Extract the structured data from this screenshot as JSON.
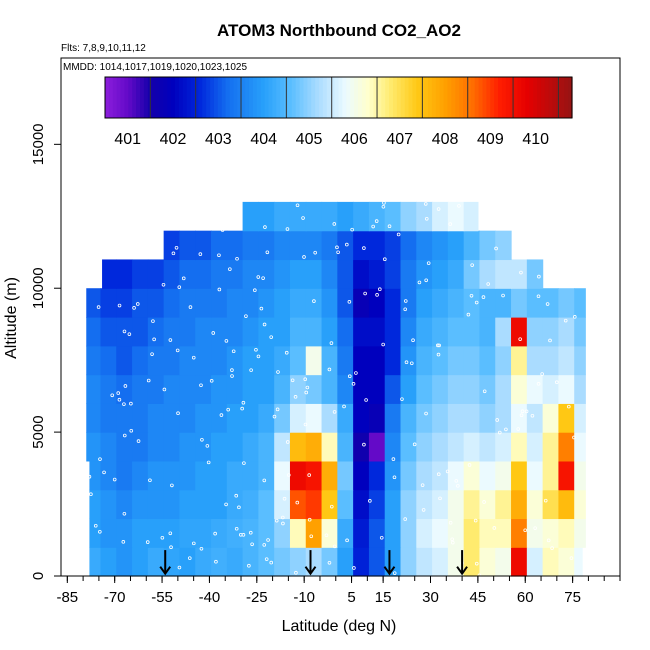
{
  "chart_data": {
    "type": "heatmap",
    "title": "ATOM3 Northbound CO2_AO2",
    "subtitle": "Flts: 7,8,9,10,11,12",
    "annotation": "MMDD: 1014,1017,1019,1020,1023,1025",
    "xlabel": "Latitude (deg N)",
    "ylabel": "Altitude (m)",
    "xlim": [
      -87,
      90
    ],
    "ylim": [
      0,
      18000
    ],
    "x_ticks": [
      -85,
      -70,
      -55,
      -40,
      -25,
      -10,
      5,
      15,
      30,
      45,
      60,
      75
    ],
    "y_ticks": [
      0,
      5000,
      10000,
      15000
    ],
    "colorbar": {
      "placement": "top-inside",
      "labels": [
        "401",
        "402",
        "403",
        "404",
        "405",
        "406",
        "407",
        "408",
        "409",
        "410"
      ],
      "range": [
        400.5,
        410.8
      ]
    },
    "arrow_latitudes": [
      -54,
      -8,
      17,
      40
    ],
    "lat_bins": [
      -77,
      -72,
      -67,
      -62,
      -57,
      -52,
      -47,
      -42,
      -37,
      -32,
      -27,
      -22,
      -17,
      -12,
      -7,
      -2,
      3,
      8,
      13,
      18,
      23,
      28,
      33,
      38,
      43,
      48,
      53,
      58,
      63,
      68,
      73,
      78
    ],
    "alt_bins": [
      500,
      1500,
      2500,
      3500,
      4500,
      5500,
      6500,
      7500,
      8500,
      9500,
      10500,
      11500,
      12500
    ],
    "values": [
      [
        404.2,
        404.0,
        403.8,
        404.0,
        404.2,
        404.1,
        404.0,
        404.2,
        404.3,
        404.2,
        404.4,
        404.6,
        404.8,
        405.0,
        405.2,
        404.8,
        404.0,
        402.5,
        403.0,
        404.0,
        405.0,
        405.4,
        405.6,
        406.0,
        406.8,
        406.2,
        406.0,
        409.6,
        405.6,
        406.4,
        406.2,
        405.8
      ],
      [
        404.0,
        403.8,
        403.8,
        404.0,
        404.0,
        404.0,
        404.1,
        404.1,
        404.2,
        404.3,
        404.4,
        404.6,
        405.0,
        406.4,
        408.0,
        406.2,
        404.2,
        402.4,
        403.0,
        404.0,
        405.0,
        405.6,
        405.8,
        406.0,
        406.8,
        406.4,
        406.4,
        408.4,
        406.0,
        406.2,
        406.4,
        406.0
      ],
      [
        404.0,
        403.8,
        403.6,
        403.8,
        403.8,
        403.8,
        404.0,
        404.0,
        404.0,
        404.2,
        404.3,
        404.6,
        405.6,
        408.8,
        409.0,
        407.4,
        404.6,
        402.2,
        402.8,
        404.0,
        405.0,
        405.4,
        405.6,
        406.0,
        406.6,
        406.2,
        406.6,
        407.8,
        406.2,
        407.0,
        407.6,
        406.2
      ],
      [
        403.8,
        403.6,
        403.4,
        403.6,
        403.8,
        403.8,
        403.8,
        404.0,
        404.0,
        404.2,
        404.2,
        404.4,
        405.8,
        409.6,
        409.4,
        407.8,
        404.8,
        402.0,
        402.6,
        403.8,
        404.8,
        405.2,
        405.4,
        405.8,
        406.2,
        405.8,
        406.0,
        407.4,
        405.8,
        406.6,
        409.4,
        406.0
      ],
      [
        403.8,
        403.6,
        403.4,
        403.4,
        403.6,
        403.6,
        403.8,
        403.8,
        404.0,
        404.0,
        404.2,
        404.4,
        405.4,
        407.6,
        407.8,
        406.4,
        404.4,
        401.6,
        401.0,
        403.6,
        404.6,
        405.0,
        405.2,
        405.4,
        405.6,
        405.4,
        405.6,
        406.4,
        405.6,
        406.6,
        408.4,
        405.8
      ],
      [
        403.6,
        403.4,
        403.4,
        403.4,
        403.6,
        403.6,
        403.6,
        403.8,
        403.8,
        404.0,
        404.0,
        404.2,
        404.8,
        405.6,
        405.8,
        405.2,
        404.2,
        402.0,
        401.8,
        403.4,
        404.4,
        404.8,
        405.0,
        405.2,
        405.2,
        405.0,
        405.2,
        405.8,
        405.4,
        406.2,
        407.4,
        405.6
      ],
      [
        403.6,
        403.4,
        403.2,
        403.4,
        403.4,
        403.6,
        403.6,
        403.6,
        403.8,
        403.8,
        404.0,
        404.0,
        404.4,
        405.0,
        404.8,
        404.4,
        403.6,
        402.0,
        402.0,
        403.0,
        404.0,
        404.6,
        404.8,
        405.0,
        405.0,
        404.8,
        405.2,
        406.2,
        405.8,
        405.6,
        405.8,
        405.2
      ],
      [
        403.4,
        403.2,
        403.0,
        403.2,
        403.4,
        403.4,
        403.6,
        403.6,
        403.6,
        403.8,
        404.0,
        404.0,
        404.2,
        404.6,
        406.0,
        404.4,
        403.4,
        402.0,
        402.0,
        402.6,
        403.8,
        404.4,
        404.6,
        404.8,
        404.8,
        404.6,
        405.0,
        406.6,
        405.2,
        405.2,
        405.4,
        405.0
      ],
      [
        403.2,
        403.0,
        403.0,
        403.0,
        403.2,
        403.4,
        403.4,
        403.6,
        403.6,
        403.6,
        403.8,
        404.0,
        404.0,
        404.4,
        404.4,
        404.0,
        403.2,
        402.2,
        402.2,
        402.6,
        403.6,
        404.2,
        404.4,
        404.6,
        404.6,
        404.4,
        405.2,
        409.6,
        405.0,
        405.0,
        405.2,
        404.8
      ],
      [
        403.0,
        402.8,
        402.8,
        403.0,
        403.0,
        403.2,
        403.4,
        403.4,
        403.4,
        403.6,
        403.6,
        403.8,
        404.0,
        404.2,
        404.2,
        403.8,
        403.0,
        401.8,
        402.0,
        402.6,
        403.4,
        404.0,
        404.2,
        404.4,
        404.6,
        404.4,
        404.4,
        404.8,
        404.6,
        404.6,
        404.8,
        404.6
      ],
      [
        null,
        402.6,
        402.6,
        402.8,
        402.8,
        403.0,
        403.2,
        403.2,
        403.4,
        403.4,
        403.6,
        403.6,
        403.8,
        404.0,
        404.0,
        403.6,
        403.0,
        402.2,
        402.4,
        402.8,
        403.4,
        403.8,
        404.0,
        404.2,
        404.8,
        405.2,
        405.4,
        405.4,
        404.8,
        null,
        null,
        null
      ],
      [
        null,
        null,
        null,
        null,
        null,
        402.8,
        403.0,
        403.0,
        403.2,
        403.2,
        403.4,
        403.4,
        403.6,
        403.6,
        403.6,
        403.4,
        403.0,
        402.6,
        402.6,
        402.8,
        403.2,
        403.6,
        403.8,
        404.0,
        404.4,
        404.8,
        405.0,
        null,
        null,
        null,
        null,
        null
      ],
      [
        null,
        null,
        null,
        null,
        null,
        null,
        null,
        null,
        null,
        null,
        404.0,
        404.0,
        404.2,
        404.2,
        404.2,
        404.2,
        404.0,
        404.2,
        404.4,
        404.6,
        405.0,
        405.2,
        405.6,
        405.8,
        405.6,
        null,
        null,
        null,
        null,
        null,
        null,
        null
      ]
    ],
    "extents": [
      [
        -78,
        78
      ],
      [
        -78,
        79
      ],
      [
        -78,
        79
      ],
      [
        -78,
        79
      ],
      [
        -79,
        79
      ],
      [
        -79,
        79
      ],
      [
        -79,
        79
      ],
      [
        -79,
        79
      ],
      [
        -79,
        79
      ],
      [
        -79,
        79
      ],
      [
        -74,
        71
      ],
      [
        -63,
        57
      ],
      [
        -37,
        45
      ]
    ]
  }
}
